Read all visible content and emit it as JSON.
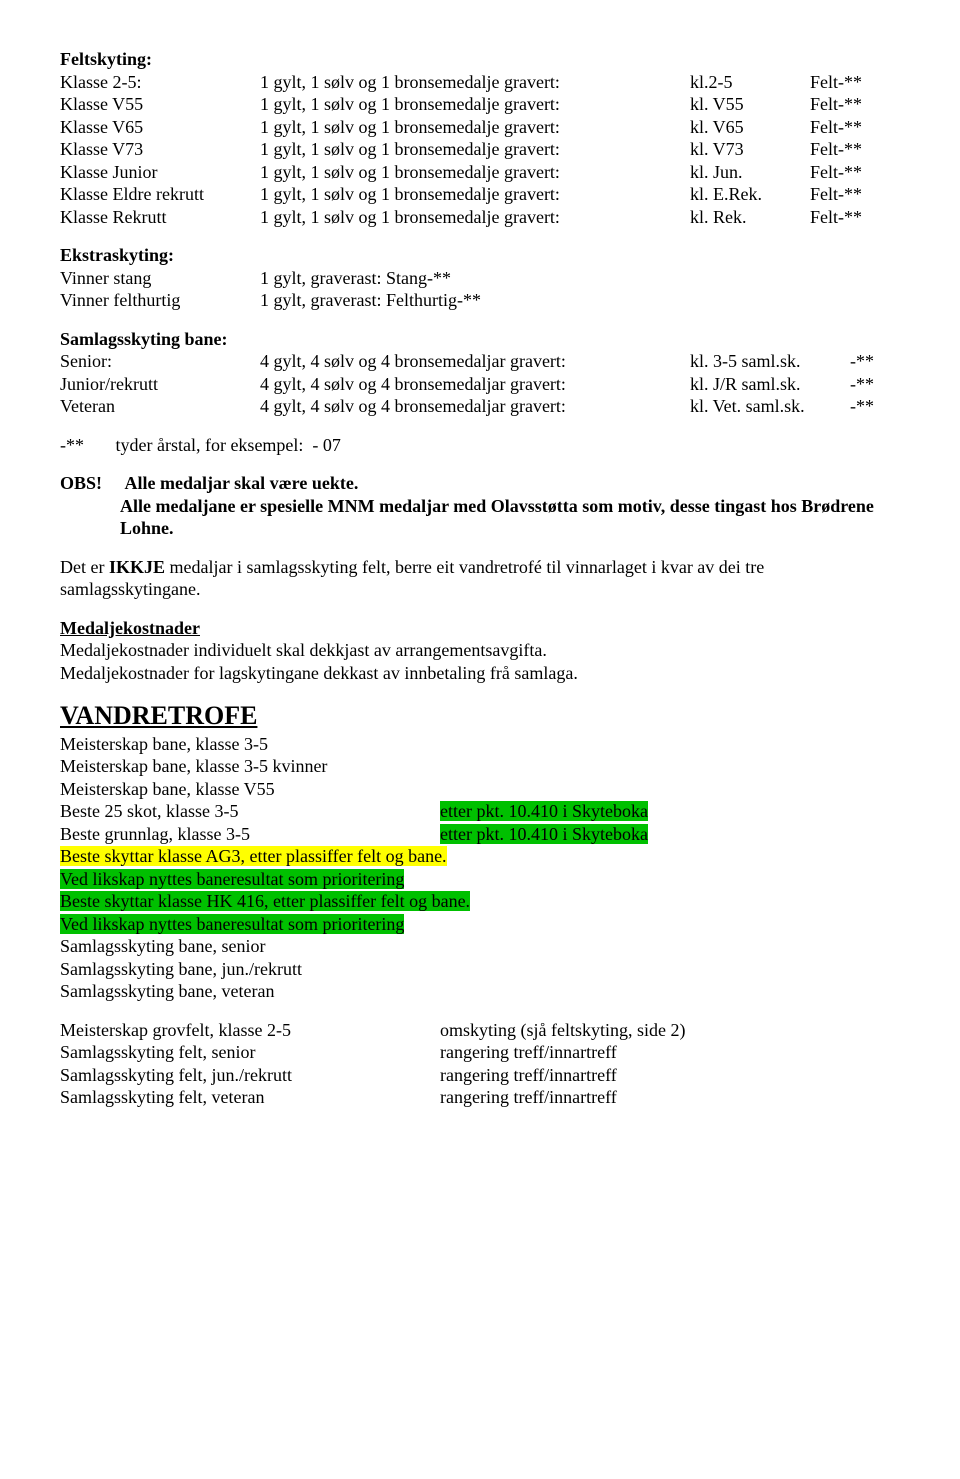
{
  "feltskyting": {
    "heading": "Feltskyting:",
    "rows": [
      {
        "c1": "Klasse 2-5:",
        "c2": "1 gylt, 1 sølv og 1 bronsemedalje gravert:",
        "c3": "kl.2-5",
        "c4": "Felt-**"
      },
      {
        "c1": "Klasse V55",
        "c2": "1 gylt, 1 sølv og 1 bronsemedalje gravert:",
        "c3": "kl. V55",
        "c4": "Felt-**"
      },
      {
        "c1": "Klasse V65",
        "c2": "1 gylt, 1 sølv og 1 bronsemedalje gravert:",
        "c3": "kl. V65",
        "c4": "Felt-**"
      },
      {
        "c1": "Klasse V73",
        "c2": "1 gylt, 1 sølv og 1 bronsemedalje gravert:",
        "c3": "kl. V73",
        "c4": "Felt-**"
      },
      {
        "c1": "Klasse Junior",
        "c2": "1 gylt, 1 sølv og 1 bronsemedalje gravert:",
        "c3": "kl. Jun.",
        "c4": "Felt-**"
      },
      {
        "c1": "Klasse Eldre rekrutt",
        "c2": "1 gylt, 1 sølv og 1 bronsemedalje gravert:",
        "c3": "kl. E.Rek.",
        "c4": "Felt-**"
      },
      {
        "c1": "Klasse Rekrutt",
        "c2": "1 gylt, 1 sølv og 1 bronsemedalje gravert:",
        "c3": "kl. Rek.",
        "c4": "Felt-**"
      }
    ]
  },
  "ekstraskyting": {
    "heading": "Ekstraskyting:",
    "rows": [
      {
        "c1": "Vinner stang",
        "c2": "1 gylt, graverast: Stang-**"
      },
      {
        "c1": "Vinner felthurtig",
        "c2": "1 gylt, graverast: Felthurtig-**"
      }
    ]
  },
  "samlagsskyting": {
    "heading": "Samlagsskyting bane:",
    "rows": [
      {
        "c1": "Senior:",
        "c2": "4 gylt, 4 sølv og 4 bronsemedaljar gravert:",
        "c3": "kl. 3-5 saml.sk.",
        "c4": "-**"
      },
      {
        "c1": "Junior/rekrutt",
        "c2": "4 gylt, 4 sølv og 4 bronsemedaljar gravert:",
        "c3": "kl. J/R saml.sk.",
        "c4": "-**"
      },
      {
        "c1": "Veteran",
        "c2": "4 gylt, 4 sølv og 4 bronsemedaljar gravert:",
        "c3": "kl. Vet. saml.sk.",
        "c4": "-**"
      }
    ]
  },
  "footnote": "-**       tyder årstal, for eksempel:  - 07",
  "obs": {
    "label": "OBS!",
    "line1": "Alle medaljar skal være uekte.",
    "line2": "Alle medaljane er spesielle MNM medaljar med Olavsstøtta som motiv, desse tingast hos Brødrene Lohne."
  },
  "ikkje": {
    "pre": "Det er ",
    "bold": "IKKJE",
    "post": " medaljar i samlagsskyting felt, berre eit vandretrofé til vinnarlaget i kvar av dei tre samlagsskytingane."
  },
  "medaljekost": {
    "heading": "Medaljekostnader",
    "line1": "Medaljekostnader individuelt skal dekkjast av arrangementsavgifta.",
    "line2": "Medaljekostnader for lagskytingane dekkast av innbetaling frå samlaga."
  },
  "vandretrofe": {
    "heading": "VANDRETROFE",
    "plain_top": [
      "Meisterskap bane, klasse 3-5",
      "Meisterskap bane, klasse 3-5 kvinner",
      "Meisterskap bane, klasse V55"
    ],
    "ref_rows": [
      {
        "left": "Beste 25 skot, klasse 3-5",
        "right": "etter pkt. 10.410 i Skyteboka"
      },
      {
        "left": "Beste grunnlag, klasse 3-5",
        "right": "etter pkt. 10.410 i Skyteboka"
      }
    ],
    "hl": [
      {
        "text": "Beste skyttar klasse AG3, etter plassiffer felt og bane.",
        "color": "yellow"
      },
      {
        "text": "Ved likskap nyttes baneresultat som prioritering",
        "color": "green"
      },
      {
        "text": "Beste skyttar klasse HK 416, etter plassiffer felt og bane.",
        "color": "green"
      },
      {
        "text": "Ved likskap nyttes baneresultat som prioritering",
        "color": "green"
      }
    ],
    "plain_bottom": [
      "Samlagsskyting bane, senior",
      "Samlagsskyting bane, jun./rekrutt",
      "Samlagsskyting bane, veteran"
    ],
    "pair_rows": [
      {
        "left": "Meisterskap grovfelt, klasse 2-5",
        "right": "omskyting (sjå feltskyting, side 2)"
      },
      {
        "left": "Samlagsskyting felt, senior",
        "right": "rangering treff/innartreff"
      },
      {
        "left": "Samlagsskyting felt, jun./rekrutt",
        "right": "rangering treff/innartreff"
      },
      {
        "left": "Samlagsskyting felt, veteran",
        "right": "rangering treff/innartreff"
      }
    ]
  }
}
